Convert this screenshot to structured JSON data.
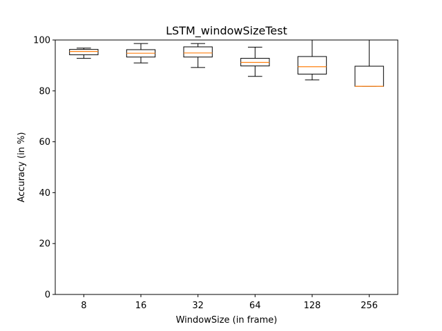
{
  "chart_data": {
    "type": "boxplot",
    "title": "LSTM_windowSizeTest",
    "xlabel": "WindowSize (in frame)",
    "ylabel": "Accuracy (in %)",
    "ylim": [
      0,
      100
    ],
    "yticks": [
      0,
      20,
      40,
      60,
      80,
      100
    ],
    "grid": false,
    "categories": [
      "8",
      "16",
      "32",
      "64",
      "128",
      "256"
    ],
    "boxes": [
      {
        "whisker_low": 92.8,
        "q1": 94.2,
        "median": 95.5,
        "q3": 96.3,
        "whisker_high": 96.8
      },
      {
        "whisker_low": 91.0,
        "q1": 93.3,
        "median": 94.8,
        "q3": 96.2,
        "whisker_high": 98.6
      },
      {
        "whisker_low": 89.2,
        "q1": 93.3,
        "median": 94.9,
        "q3": 97.3,
        "whisker_high": 98.6
      },
      {
        "whisker_low": 85.7,
        "q1": 89.8,
        "median": 91.2,
        "q3": 92.8,
        "whisker_high": 97.2
      },
      {
        "whisker_low": 84.3,
        "q1": 86.6,
        "median": 89.5,
        "q3": 93.5,
        "whisker_high": 100.0
      },
      {
        "whisker_low": 81.8,
        "q1": 81.8,
        "median": 81.8,
        "q3": 89.7,
        "whisker_high": 100.0
      }
    ],
    "colors": {
      "box": "#000000",
      "median": "#ff7f0e"
    }
  }
}
